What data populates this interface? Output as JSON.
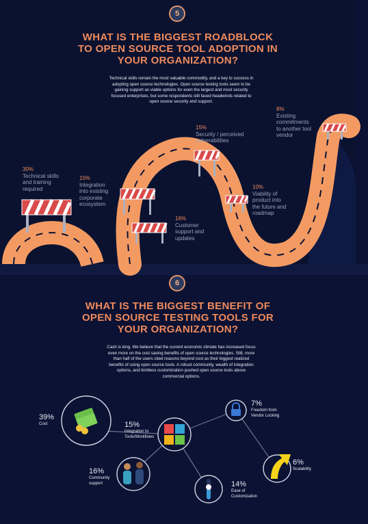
{
  "section5": {
    "badge": "5",
    "title_lines": [
      "WHAT IS THE BIGGEST ROADBLOCK",
      "TO OPEN SOURCE TOOL ADOPTION IN",
      "YOUR ORGANIZATION?"
    ],
    "intro_lines": [
      "Technical skills remain the most valuable commodity, and a key to success in",
      "adopting open source technologies. Open source testing tools seem to be",
      "gaining support as viable options for even the largest and most security",
      "focused enterprises, but some respondents still faced headwinds related to",
      "open source security and support."
    ],
    "roadblocks": [
      {
        "pct": "30%",
        "lines": [
          "Technical skills",
          "and training",
          "required"
        ]
      },
      {
        "pct": "15%",
        "lines": [
          "Integration",
          "into existing",
          "corporate",
          "ecosystem"
        ]
      },
      {
        "pct": "16%",
        "lines": [
          "Customer",
          "support and",
          "updates"
        ]
      },
      {
        "pct": "15%",
        "lines": [
          "Security / perceived",
          "vulnerabilities"
        ]
      },
      {
        "pct": "10%",
        "lines": [
          "Viability of",
          "product into",
          "the future and",
          "roadmap"
        ]
      },
      {
        "pct": "8%",
        "lines": [
          "Existing",
          "commitments",
          "to another tool",
          "vendor"
        ]
      }
    ]
  },
  "section6": {
    "badge": "6",
    "title_lines": [
      "WHAT IS THE BIGGEST BENEFIT OF",
      "OPEN SOURCE TESTING TOOLS FOR",
      "YOUR ORGANIZATION?"
    ],
    "intro_lines": [
      "Cash is king. We believe that the current economic climate has increased focus",
      "even more on the cost saving benefits of open source technologies. Still, more",
      "than half of the users cited reasons beyond cost as their biggest realized",
      "benefits of using open source tools. A robust community, wealth of integration",
      "options, and limitless customization pushed open source tools above",
      "commercial options."
    ],
    "benefits": [
      {
        "pct": "39%",
        "lines": [
          "Cost"
        ],
        "icon": "money-icon"
      },
      {
        "pct": "15%",
        "lines": [
          "Integration to",
          "Tools/Workflows"
        ],
        "icon": "puzzle-icon"
      },
      {
        "pct": "16%",
        "lines": [
          "Community",
          "support"
        ],
        "icon": "people-icon"
      },
      {
        "pct": "7%",
        "lines": [
          "Freedom from",
          "Vendor Locking"
        ],
        "icon": "lock-icon"
      },
      {
        "pct": "14%",
        "lines": [
          "Ease of",
          "Customization"
        ],
        "icon": "slider-icon"
      },
      {
        "pct": "6%",
        "lines": [
          "Scalability"
        ],
        "icon": "arrow-up-icon"
      }
    ]
  },
  "colors": {
    "background": "#0b1233",
    "accent": "#ef8a5c",
    "road": "#f39a63",
    "muted_text": "#9aa3b8"
  }
}
